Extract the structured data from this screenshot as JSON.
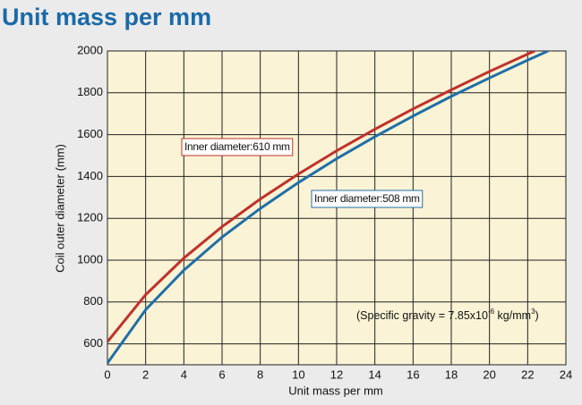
{
  "chart_data": {
    "type": "line",
    "title": "Unit mass per mm",
    "x_label": "Unit mass per mm",
    "y_label": "Coil outer diameter (mm)",
    "xlim": [
      0,
      24
    ],
    "xticks": [
      0,
      2,
      4,
      6,
      8,
      10,
      12,
      14,
      16,
      18,
      20,
      22,
      24
    ],
    "ylim": [
      500,
      2000
    ],
    "yticks": [
      600,
      800,
      1000,
      1200,
      1400,
      1600,
      1800,
      2000
    ],
    "grid": true,
    "series": [
      {
        "name": "Inner diameter:610 mm",
        "color": "#c0312b",
        "x": [
          0,
          2,
          4,
          6,
          8,
          10,
          12,
          14,
          16,
          18,
          20,
          22,
          22.37
        ],
        "values": [
          610,
          835,
          1010,
          1160,
          1292,
          1412,
          1523,
          1626,
          1723,
          1814,
          1902,
          1985,
          2000
        ]
      },
      {
        "name": "Inner diameter:508 mm",
        "color": "#1f6fa8",
        "x": [
          0,
          2,
          4,
          6,
          8,
          10,
          12,
          14,
          16,
          18,
          20,
          22,
          23.07
        ],
        "values": [
          508,
          763,
          952,
          1110,
          1247,
          1371,
          1485,
          1590,
          1689,
          1783,
          1871,
          1956,
          2000
        ]
      }
    ],
    "note": [
      "(Specific gravity = 7.85x10",
      "-6",
      " kg/mm",
      "3",
      ")"
    ]
  }
}
